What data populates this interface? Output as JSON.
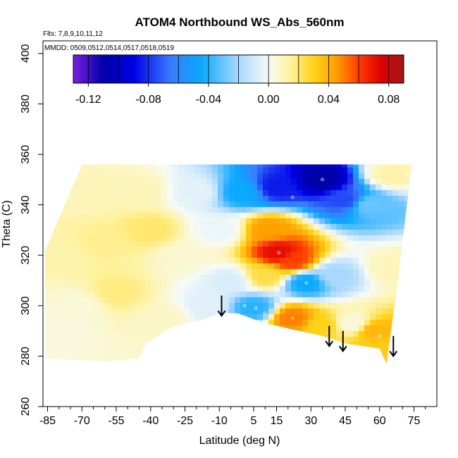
{
  "chart_data": {
    "type": "heatmap",
    "title": "ATOM4 Northbound WS_Abs_560nm",
    "flights_note": "Flts: 7,8,9,10,11,12",
    "dates_note": "MMDD: 0509,0512,0514,0517,0518,0519",
    "xlabel": "Latitude (deg N)",
    "ylabel": "Theta (C)",
    "xlim": [
      -87,
      85
    ],
    "ylim": [
      260,
      405
    ],
    "x_ticks": [
      -85,
      -70,
      -55,
      -40,
      -25,
      -10,
      5,
      15,
      30,
      45,
      60,
      75
    ],
    "x_minor_ticks": [
      -80,
      -75,
      -65,
      -60,
      -50,
      -45,
      -35,
      -30,
      -20,
      -15,
      -5,
      0,
      10,
      20,
      25,
      35,
      40,
      50,
      55,
      65,
      70,
      80
    ],
    "y_ticks": [
      260,
      280,
      300,
      320,
      340,
      360,
      380,
      400
    ],
    "grid": false,
    "colorbar": {
      "placement": "top",
      "min": -0.13,
      "max": 0.09,
      "tick_values": [
        -0.12,
        -0.08,
        -0.04,
        0.0,
        0.04,
        0.08
      ],
      "tick_labels": [
        "-0.12",
        "-0.08",
        "-0.04",
        "0.00",
        "0.04",
        "0.08"
      ],
      "boundaries": [
        -0.12,
        -0.1,
        -0.08,
        -0.06,
        -0.04,
        -0.02,
        0.0,
        0.02,
        0.04,
        0.06,
        0.08
      ],
      "color_stops": [
        {
          "v": -0.13,
          "c": "#7b1fe0"
        },
        {
          "v": -0.11,
          "c": "#0000a8"
        },
        {
          "v": -0.09,
          "c": "#0000e6"
        },
        {
          "v": -0.065,
          "c": "#3a7cff"
        },
        {
          "v": -0.045,
          "c": "#0aa8ff"
        },
        {
          "v": -0.02,
          "c": "#a9d8ff"
        },
        {
          "v": 0.0,
          "c": "#f7fbf7"
        },
        {
          "v": 0.015,
          "c": "#fff19a"
        },
        {
          "v": 0.03,
          "c": "#ffd21a"
        },
        {
          "v": 0.045,
          "c": "#ff9f00"
        },
        {
          "v": 0.06,
          "c": "#ff3c00"
        },
        {
          "v": 0.075,
          "c": "#dd0000"
        },
        {
          "v": 0.09,
          "c": "#9e1a1a"
        }
      ]
    },
    "field_outline_points": [
      [
        -86,
        285
      ],
      [
        -86,
        322
      ],
      [
        -70,
        356
      ],
      [
        -30,
        356
      ],
      [
        10,
        356
      ],
      [
        74,
        356
      ],
      [
        68,
        310
      ],
      [
        63,
        277
      ],
      [
        60,
        283
      ],
      [
        45,
        285
      ],
      [
        35,
        288
      ],
      [
        10,
        293
      ],
      [
        -2,
        297
      ],
      [
        -10,
        297
      ],
      [
        -18,
        294
      ],
      [
        -30,
        292
      ],
      [
        -42,
        285
      ],
      [
        -45,
        279
      ],
      [
        -60,
        278
      ],
      [
        -86,
        279
      ]
    ],
    "field_anchor_points": [
      {
        "lat": -80,
        "theta": 320,
        "value": 0.012
      },
      {
        "lat": -70,
        "theta": 300,
        "value": 0.005
      },
      {
        "lat": -60,
        "theta": 325,
        "value": 0.016
      },
      {
        "lat": -55,
        "theta": 305,
        "value": 0.018
      },
      {
        "lat": -45,
        "theta": 345,
        "value": 0.01
      },
      {
        "lat": -40,
        "theta": 330,
        "value": 0.02
      },
      {
        "lat": -35,
        "theta": 295,
        "value": 0.008
      },
      {
        "lat": -25,
        "theta": 320,
        "value": 0.006
      },
      {
        "lat": -20,
        "theta": 345,
        "value": -0.005
      },
      {
        "lat": -10,
        "theta": 330,
        "value": -0.003
      },
      {
        "lat": -5,
        "theta": 310,
        "value": -0.008
      },
      {
        "lat": 0,
        "theta": 345,
        "value": -0.045
      },
      {
        "lat": 15,
        "theta": 347,
        "value": -0.085
      },
      {
        "lat": 35,
        "theta": 350,
        "value": -0.11
      },
      {
        "lat": 45,
        "theta": 342,
        "value": -0.075
      },
      {
        "lat": 55,
        "theta": 340,
        "value": -0.03
      },
      {
        "lat": 65,
        "theta": 352,
        "value": 0.012
      },
      {
        "lat": 12,
        "theta": 330,
        "value": 0.045
      },
      {
        "lat": 16,
        "theta": 321,
        "value": 0.072
      },
      {
        "lat": 22,
        "theta": 318,
        "value": 0.06
      },
      {
        "lat": 10,
        "theta": 312,
        "value": 0.025
      },
      {
        "lat": 28,
        "theta": 309,
        "value": -0.045
      },
      {
        "lat": 40,
        "theta": 312,
        "value": -0.02
      },
      {
        "lat": 5,
        "theta": 299,
        "value": -0.04
      },
      {
        "lat": 22,
        "theta": 295,
        "value": 0.05
      },
      {
        "lat": 35,
        "theta": 292,
        "value": 0.03
      },
      {
        "lat": 48,
        "theta": 293,
        "value": 0.005
      },
      {
        "lat": 58,
        "theta": 290,
        "value": 0.038
      },
      {
        "lat": 60,
        "theta": 283,
        "value": 0.032
      },
      {
        "lat": 66,
        "theta": 315,
        "value": 0.01
      },
      {
        "lat": -15,
        "theta": 300,
        "value": -0.006
      },
      {
        "lat": -70,
        "theta": 345,
        "value": 0.01
      },
      {
        "lat": -80,
        "theta": 290,
        "value": 0.004
      }
    ],
    "sample_points": [
      {
        "lat": 35,
        "theta": 350
      },
      {
        "lat": 22,
        "theta": 343
      },
      {
        "lat": 16,
        "theta": 321
      },
      {
        "lat": 28,
        "theta": 309
      },
      {
        "lat": 1,
        "theta": 300
      },
      {
        "lat": 6,
        "theta": 299
      },
      {
        "lat": 10,
        "theta": 297
      },
      {
        "lat": 22,
        "theta": 295
      },
      {
        "lat": 60,
        "theta": 288
      },
      {
        "lat": 72,
        "theta": 352
      }
    ],
    "arrows": [
      {
        "lat": -9,
        "theta_top": 304,
        "theta_tip": 296
      },
      {
        "lat": 38,
        "theta_top": 292,
        "theta_tip": 284
      },
      {
        "lat": 44,
        "theta_top": 290,
        "theta_tip": 282
      },
      {
        "lat": 66,
        "theta_top": 288,
        "theta_tip": 280
      }
    ]
  }
}
